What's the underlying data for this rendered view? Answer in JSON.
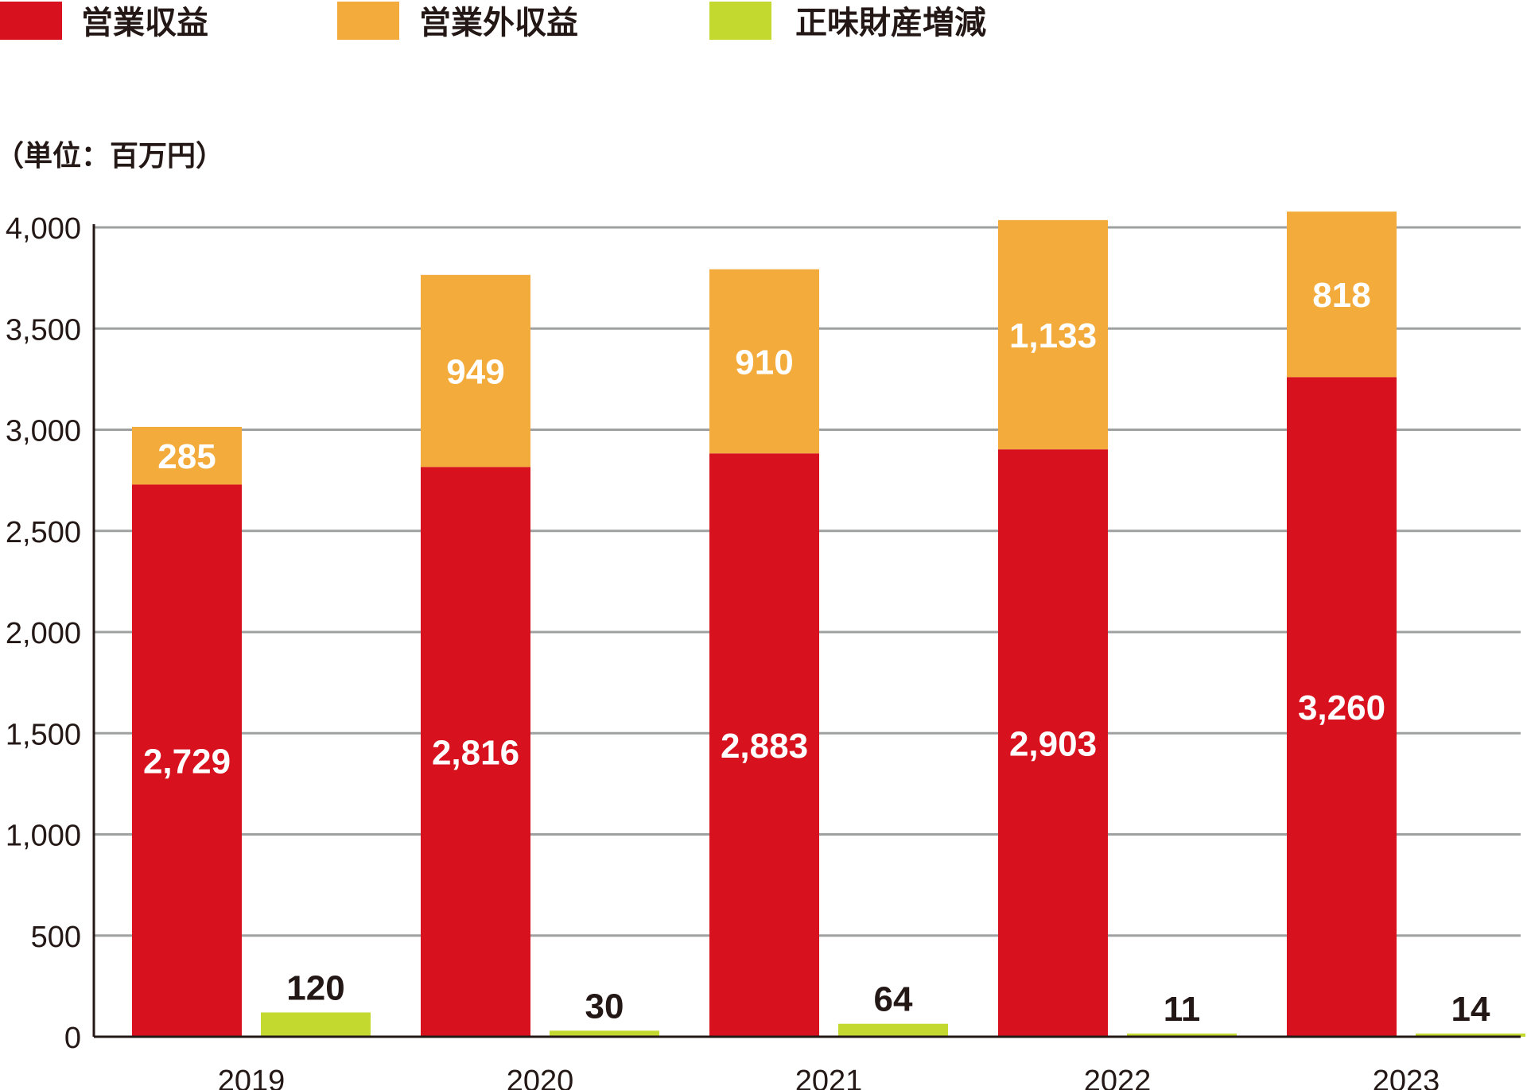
{
  "chart_data": {
    "type": "bar",
    "unit_label": "（単位：百万円）",
    "categories": [
      "2019",
      "2020",
      "2021",
      "2022",
      "2023"
    ],
    "ylim": [
      0,
      4000
    ],
    "yticks": [
      0,
      500,
      1000,
      1500,
      2000,
      2500,
      3000,
      3500,
      4000
    ],
    "ytick_labels": [
      "0",
      "500",
      "1,000",
      "1,500",
      "2,000",
      "2,500",
      "3,000",
      "3,500",
      "4,000"
    ],
    "grid": true,
    "legend_position": "top-left",
    "series": [
      {
        "name": "営業収益",
        "color": "#d7111d",
        "stack": "main",
        "values": [
          2729,
          2816,
          2883,
          2903,
          3260
        ],
        "labels": [
          "2,729",
          "2,816",
          "2,883",
          "2,903",
          "3,260"
        ]
      },
      {
        "name": "営業外収益",
        "color": "#f3ab3c",
        "stack": "main",
        "values": [
          285,
          949,
          910,
          1133,
          818
        ],
        "labels": [
          "285",
          "949",
          "910",
          "1,133",
          "818"
        ]
      },
      {
        "name": "正味財産増減",
        "color": "#c4d930",
        "stack": "side",
        "values": [
          120,
          30,
          64,
          11,
          14
        ],
        "labels": [
          "120",
          "30",
          "64",
          "11",
          "14"
        ]
      }
    ]
  }
}
